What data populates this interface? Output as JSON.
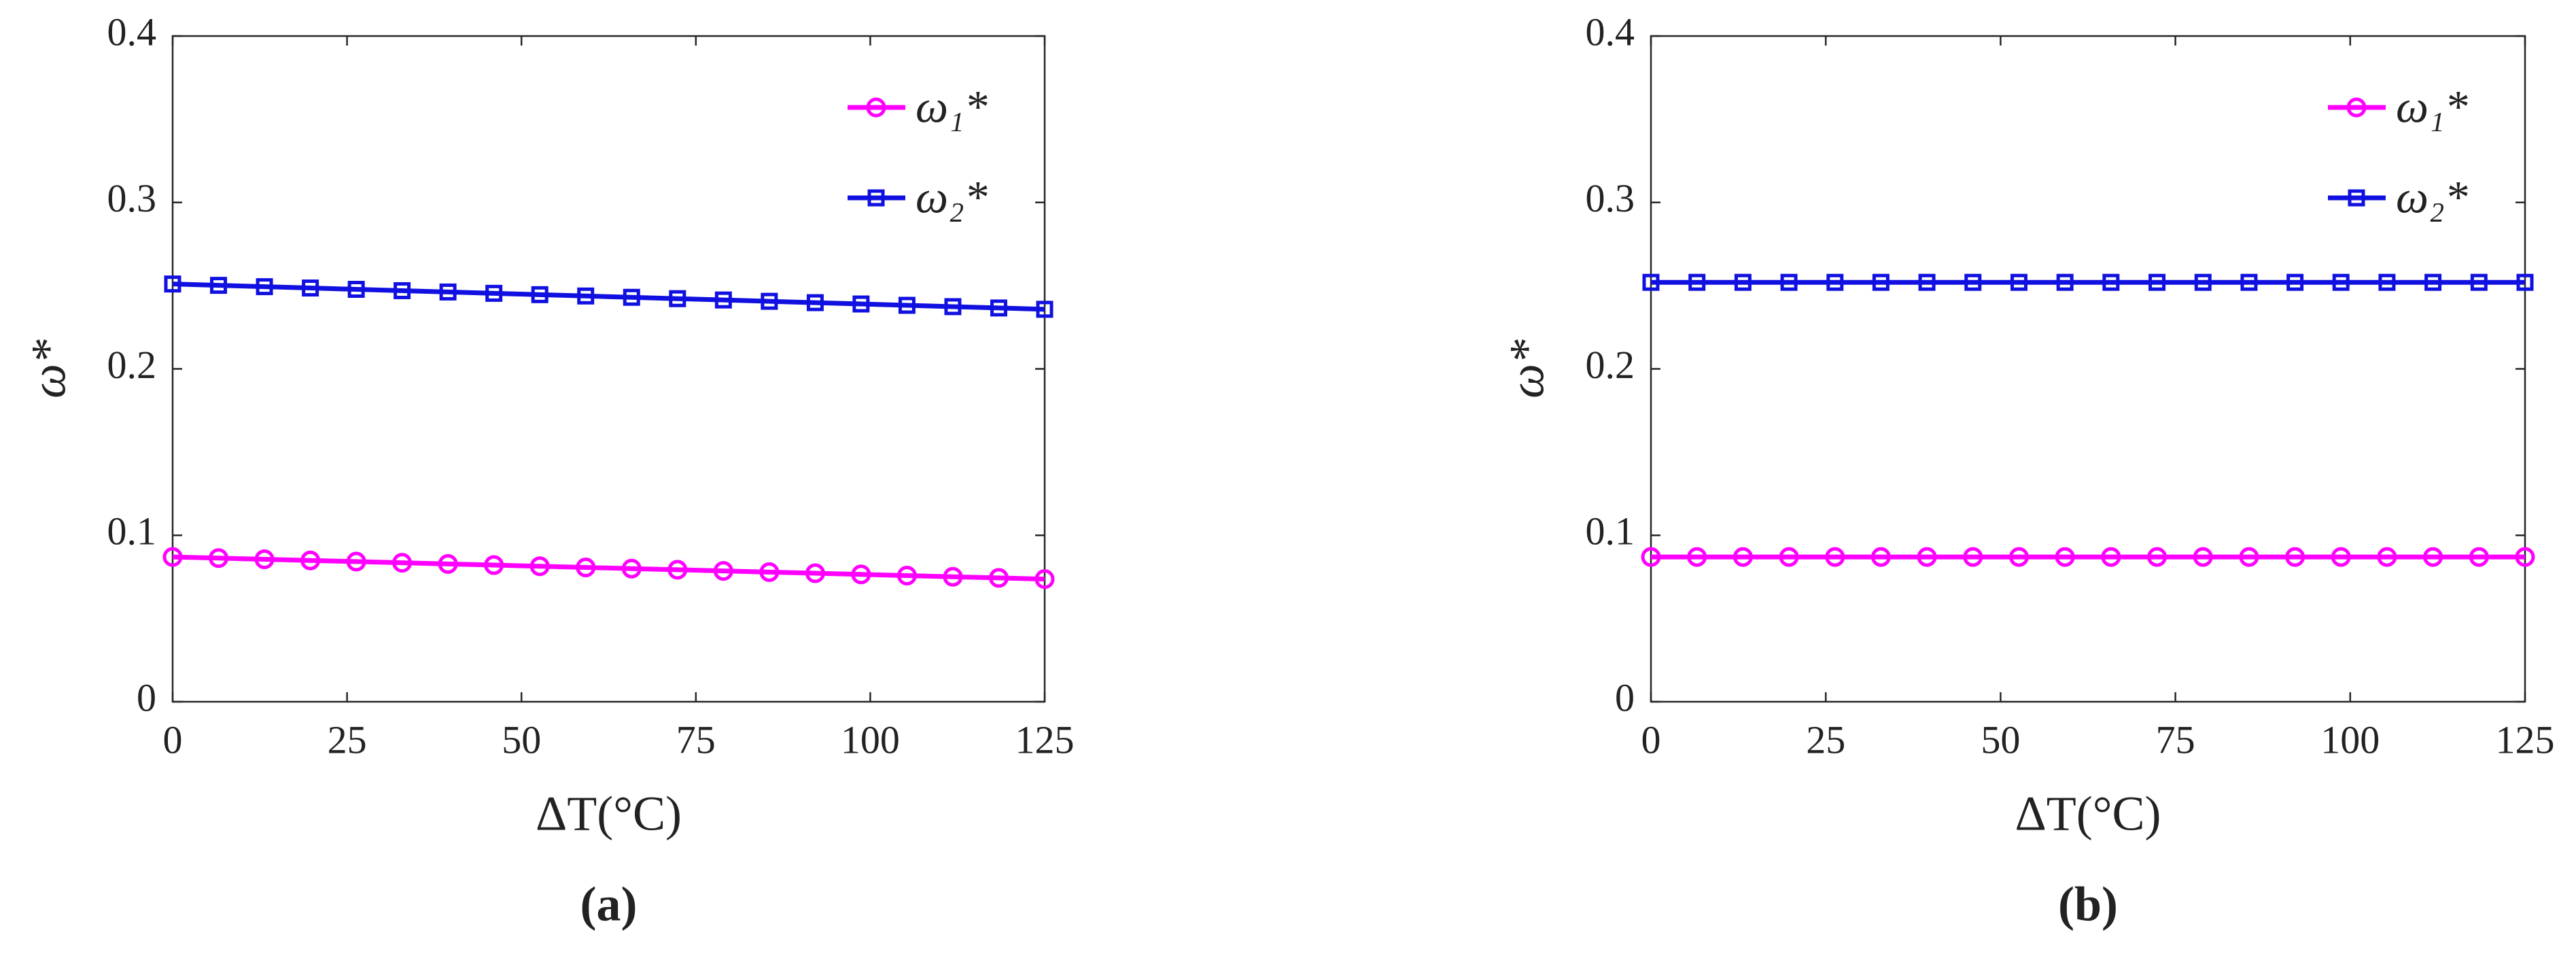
{
  "chart_data": [
    {
      "type": "line",
      "xlabel": "ΔT(°C)",
      "ylabel": "ω*",
      "caption": "(a)",
      "x": [
        0,
        6.58,
        13.16,
        19.74,
        26.32,
        32.89,
        39.47,
        46.05,
        52.63,
        59.21,
        65.79,
        72.37,
        78.95,
        85.53,
        92.11,
        98.68,
        105.26,
        111.84,
        118.42,
        125
      ],
      "xlim": [
        0,
        125
      ],
      "xticks": [
        0,
        25,
        50,
        75,
        100,
        125
      ],
      "ylim": [
        0,
        0.4
      ],
      "yticks": [
        0,
        0.1,
        0.2,
        0.3,
        0.4
      ],
      "legend": "northeast",
      "series": [
        {
          "name": "ω₁*",
          "color": "#ff00ff",
          "marker": "circle",
          "values": [
            0.087,
            0.0863,
            0.0856,
            0.0849,
            0.0842,
            0.0835,
            0.0828,
            0.0821,
            0.0814,
            0.0807,
            0.08,
            0.0793,
            0.0786,
            0.0779,
            0.0772,
            0.0765,
            0.0758,
            0.0751,
            0.0744,
            0.0737
          ]
        },
        {
          "name": "ω₂*",
          "color": "#1010e0",
          "marker": "square",
          "values": [
            0.251,
            0.2502,
            0.2494,
            0.2486,
            0.2478,
            0.247,
            0.2462,
            0.2454,
            0.2446,
            0.2438,
            0.243,
            0.2422,
            0.2414,
            0.2406,
            0.2398,
            0.239,
            0.2382,
            0.2374,
            0.2366,
            0.2358
          ]
        }
      ]
    },
    {
      "type": "line",
      "xlabel": "ΔT(°C)",
      "ylabel": "ω*",
      "caption": "(b)",
      "x": [
        0,
        6.58,
        13.16,
        19.74,
        26.32,
        32.89,
        39.47,
        46.05,
        52.63,
        59.21,
        65.79,
        72.37,
        78.95,
        85.53,
        92.11,
        98.68,
        105.26,
        111.84,
        118.42,
        125
      ],
      "xlim": [
        0,
        125
      ],
      "xticks": [
        0,
        25,
        50,
        75,
        100,
        125
      ],
      "ylim": [
        0,
        0.4
      ],
      "yticks": [
        0,
        0.1,
        0.2,
        0.3,
        0.4
      ],
      "legend": "northeast",
      "series": [
        {
          "name": "ω₁*",
          "color": "#ff00ff",
          "marker": "circle",
          "values": [
            0.087,
            0.087,
            0.087,
            0.087,
            0.087,
            0.087,
            0.087,
            0.087,
            0.087,
            0.087,
            0.087,
            0.087,
            0.087,
            0.087,
            0.087,
            0.087,
            0.087,
            0.087,
            0.087,
            0.087
          ]
        },
        {
          "name": "ω₂*",
          "color": "#1010e0",
          "marker": "square",
          "values": [
            0.252,
            0.252,
            0.252,
            0.252,
            0.252,
            0.252,
            0.252,
            0.252,
            0.252,
            0.252,
            0.252,
            0.252,
            0.252,
            0.252,
            0.252,
            0.252,
            0.252,
            0.252,
            0.252,
            0.252
          ]
        }
      ]
    }
  ]
}
